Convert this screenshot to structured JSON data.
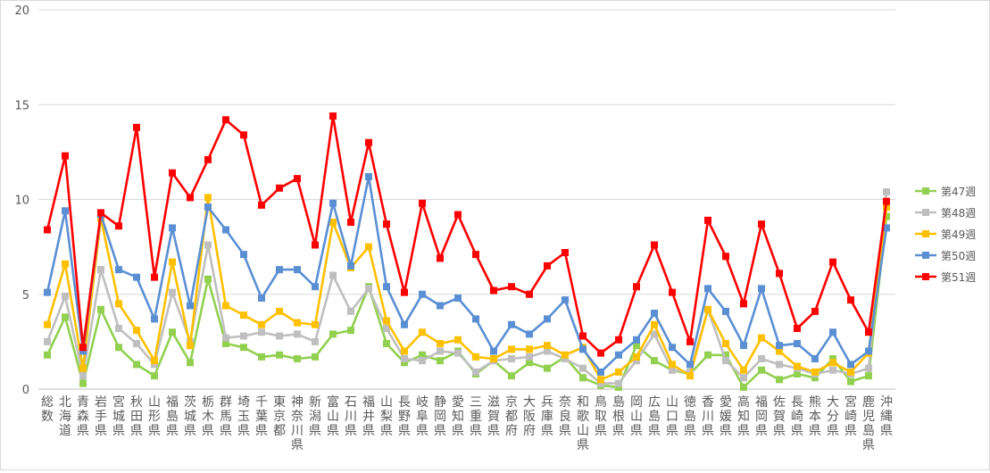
{
  "chart_data": {
    "type": "line",
    "title": "",
    "xlabel": "",
    "ylabel": "",
    "ylim": [
      0,
      20
    ],
    "yticks": [
      0,
      5,
      10,
      15,
      20
    ],
    "grid": true,
    "legend_position": "right",
    "categories": [
      "総数",
      "北海道",
      "青森県",
      "岩手県",
      "宮城県",
      "秋田県",
      "山形県",
      "福島県",
      "茨城県",
      "栃木県",
      "群馬県",
      "埼玉県",
      "千葉県",
      "東京都",
      "神奈川県",
      "新潟県",
      "富山県",
      "石川県",
      "福井県",
      "山梨県",
      "長野県",
      "岐阜県",
      "静岡県",
      "愛知県",
      "三重県",
      "滋賀県",
      "京都府",
      "大阪府",
      "兵庫県",
      "奈良県",
      "和歌山県",
      "鳥取県",
      "島根県",
      "岡山県",
      "広島県",
      "山口県",
      "徳島県",
      "香川県",
      "愛媛県",
      "高知県",
      "福岡県",
      "佐賀県",
      "長崎県",
      "熊本県",
      "大分県",
      "宮崎県",
      "鹿児島県",
      "沖縄県"
    ],
    "series": [
      {
        "name": "第47週",
        "color": "#92d050",
        "values": [
          1.8,
          3.8,
          0.3,
          4.2,
          2.2,
          1.3,
          0.7,
          3.0,
          1.4,
          5.8,
          2.4,
          2.2,
          1.7,
          1.8,
          1.6,
          1.7,
          2.9,
          3.1,
          5.4,
          2.4,
          1.4,
          1.8,
          1.5,
          2.0,
          0.8,
          1.5,
          0.7,
          1.4,
          1.1,
          1.7,
          0.6,
          0.2,
          0.1,
          2.3,
          1.5,
          1.0,
          0.8,
          1.8,
          1.8,
          0.1,
          1.0,
          0.5,
          0.8,
          0.6,
          1.6,
          0.4,
          0.7,
          9.1
        ]
      },
      {
        "name": "第48週",
        "color": "#bfbfbf",
        "values": [
          2.5,
          4.9,
          0.7,
          6.3,
          3.2,
          2.4,
          1.3,
          5.1,
          2.5,
          7.6,
          2.7,
          2.8,
          3.0,
          2.8,
          2.9,
          2.5,
          6.0,
          4.1,
          5.3,
          3.2,
          1.6,
          1.5,
          2.0,
          1.9,
          0.9,
          1.5,
          1.6,
          1.7,
          2.0,
          1.6,
          1.1,
          0.3,
          0.3,
          1.5,
          2.9,
          1.0,
          0.9,
          4.2,
          1.5,
          0.6,
          1.6,
          1.3,
          1.1,
          0.8,
          1.0,
          0.8,
          1.1,
          10.4
        ]
      },
      {
        "name": "第49週",
        "color": "#ffc000",
        "values": [
          3.4,
          6.6,
          1.1,
          9.0,
          4.5,
          3.1,
          1.5,
          6.7,
          2.3,
          10.1,
          4.4,
          3.9,
          3.4,
          4.1,
          3.5,
          3.4,
          8.8,
          6.4,
          7.5,
          3.6,
          2.0,
          3.0,
          2.4,
          2.6,
          1.7,
          1.6,
          2.1,
          2.1,
          2.3,
          1.8,
          2.2,
          0.5,
          0.9,
          1.7,
          3.4,
          1.3,
          0.7,
          4.2,
          2.4,
          1.0,
          2.7,
          2.0,
          1.2,
          0.9,
          1.4,
          0.9,
          1.9,
          9.6
        ]
      },
      {
        "name": "第50週",
        "color": "#5b8fd4",
        "values": [
          5.1,
          9.4,
          2.0,
          9.2,
          6.3,
          5.9,
          3.7,
          8.5,
          4.4,
          9.6,
          8.4,
          7.1,
          4.8,
          6.3,
          6.3,
          5.4,
          9.8,
          6.5,
          11.2,
          5.4,
          3.4,
          5.0,
          4.4,
          4.8,
          3.7,
          2.0,
          3.4,
          2.9,
          3.7,
          4.7,
          2.1,
          0.9,
          1.8,
          2.6,
          4.0,
          2.2,
          1.3,
          5.3,
          4.1,
          2.3,
          5.3,
          2.3,
          2.4,
          1.6,
          3.0,
          1.3,
          2.0,
          8.5
        ]
      },
      {
        "name": "第51週",
        "color": "#ff0000",
        "values": [
          8.4,
          12.3,
          2.2,
          9.3,
          8.6,
          13.8,
          5.9,
          11.4,
          10.1,
          12.1,
          14.2,
          13.4,
          9.7,
          10.6,
          11.1,
          7.6,
          14.4,
          8.8,
          13.0,
          8.7,
          5.1,
          9.8,
          6.9,
          9.2,
          7.1,
          5.2,
          5.4,
          5.0,
          6.5,
          7.2,
          2.8,
          1.9,
          2.6,
          5.4,
          7.6,
          5.1,
          2.5,
          8.9,
          7.0,
          4.5,
          8.7,
          6.1,
          3.2,
          4.1,
          6.7,
          4.7,
          3.0,
          9.9
        ]
      }
    ]
  }
}
